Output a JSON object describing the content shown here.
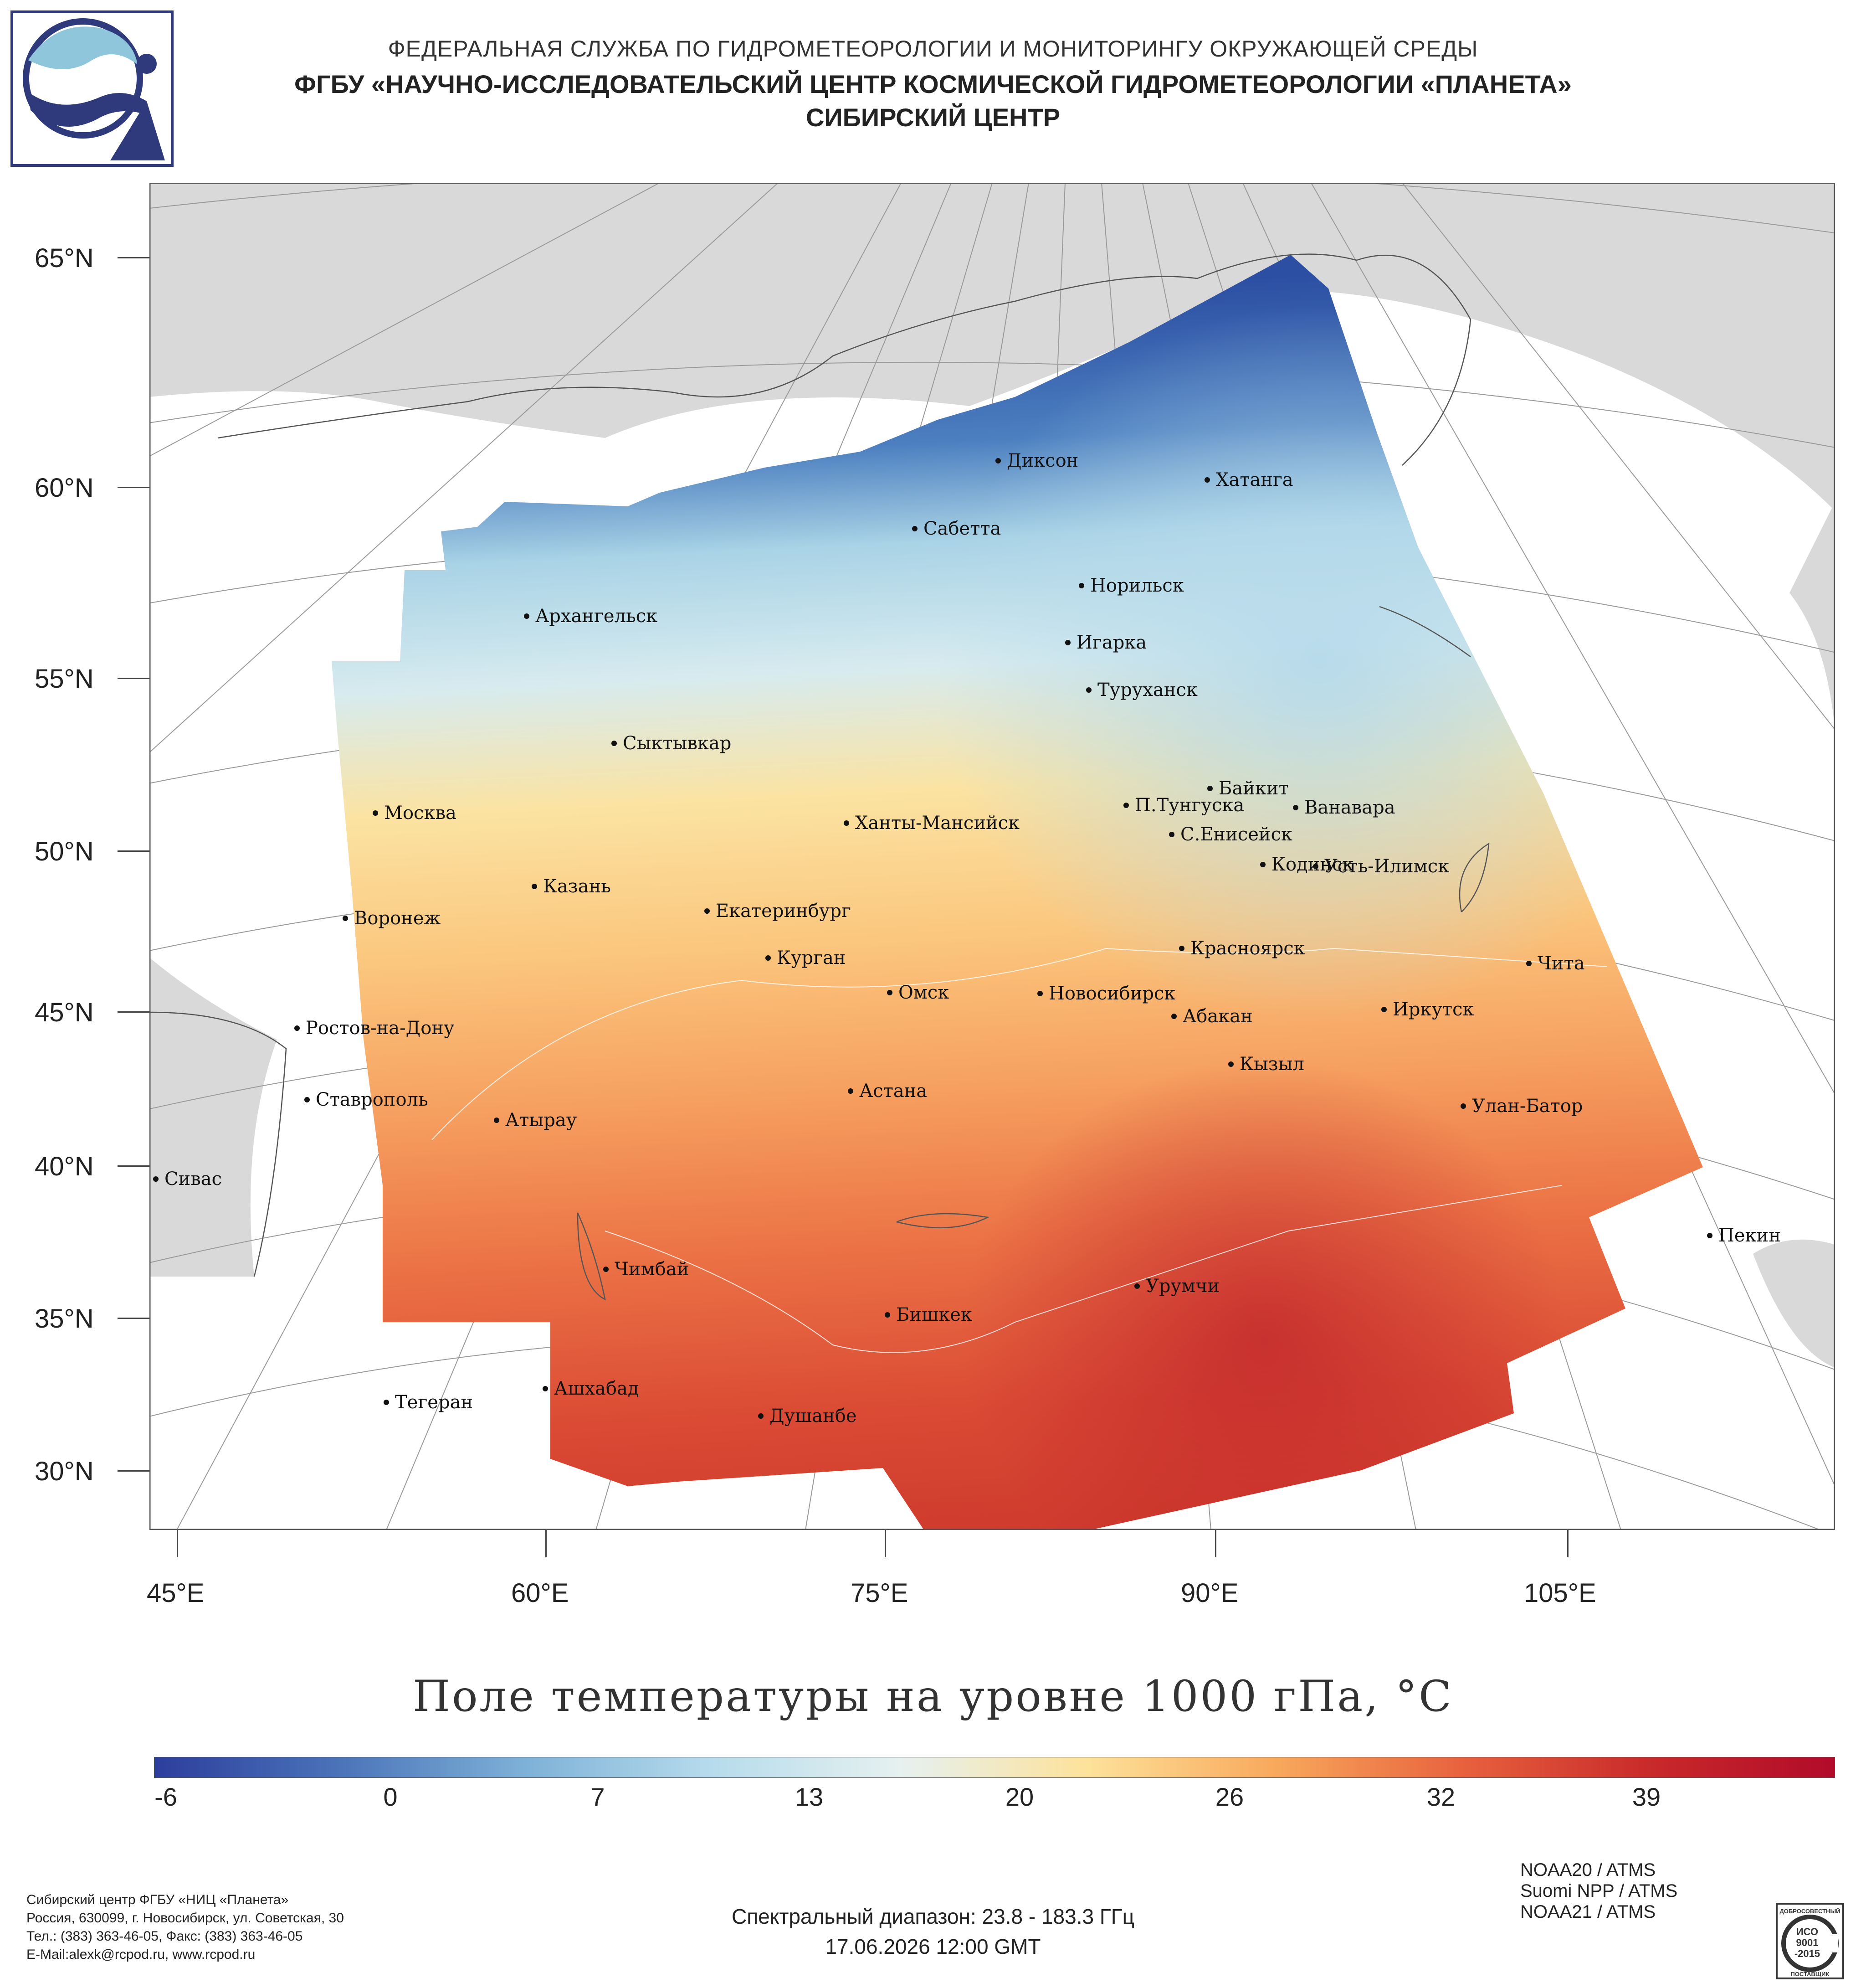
{
  "header": {
    "line1": "ФЕДЕРАЛЬНАЯ СЛУЖБА ПО ГИДРОМЕТЕОРОЛОГИИ И МОНИТОРИНГУ ОКРУЖАЮЩЕЙ СРЕДЫ",
    "line2": "ФГБУ «НАУЧНО-ИССЛЕДОВАТЕЛЬСКИЙ ЦЕНТР КОСМИЧЕСКОЙ ГИДРОМЕТЕОРОЛОГИИ «ПЛАНЕТА»",
    "line3": "СИБИРСКИЙ ЦЕНТР"
  },
  "map": {
    "lat_labels": [
      "65°N",
      "60°N",
      "55°N",
      "50°N",
      "45°N",
      "40°N",
      "35°N",
      "30°N"
    ],
    "lon_labels": [
      "45°E",
      "60°E",
      "75°E",
      "90°E",
      "105°E"
    ],
    "cities": [
      "Диксон",
      "Хатанга",
      "Сабетта",
      "Норильск",
      "Архангельск",
      "Игарка",
      "Туруханск",
      "Сыктывкар",
      "Байкит",
      "П.Тунгуска",
      "Ванавара",
      "Москва",
      "Ханты-Мансийск",
      "С.Енисейск",
      "Кодинск",
      "Усть-Илимск",
      "Казань",
      "Воронеж",
      "Екатеринбург",
      "Красноярск",
      "Курган",
      "Чита",
      "Омск",
      "Новосибирск",
      "Иркутск",
      "Ростов-на-Дону",
      "Абакан",
      "Кызыл",
      "Ставрополь",
      "Астана",
      "Улан-Батор",
      "Атырау",
      "Сивас",
      "Пекин",
      "Чимбай",
      "Урумчи",
      "Бишкек",
      "Ашхабад",
      "Тегеран",
      "Душанбе"
    ],
    "colors": {
      "land": "#d9d9d9",
      "ocean": "#ffffff",
      "border": "#ffffff",
      "graticule": "#9a9a9a"
    }
  },
  "product_title": "Поле температуры на уровне 1000 гПа, °C",
  "colorbar": {
    "ticks": [
      "-6",
      "0",
      "7",
      "13",
      "20",
      "26",
      "32",
      "39"
    ],
    "colors": [
      "#2c3e9c",
      "#4b74b9",
      "#7fb2d8",
      "#b7dcec",
      "#e6f1f0",
      "#fde29a",
      "#f8a95c",
      "#e8623e",
      "#c92a2a",
      "#b10b2a"
    ]
  },
  "footer": {
    "org_lines": [
      "Сибирский центр ФГБУ «НИЦ «Планета»",
      "Россия, 630099, г. Новосибирск, ул. Советская, 30",
      "Тел.: (383) 363-46-05, Факс: (383) 363-46-05",
      "E-Mail:alexk@rcpod.ru, www.rcpod.ru"
    ],
    "spectral_range": "Спектральный диапазон: 23.8 - 183.3 ГГц",
    "datetime": "17.06.2026 12:00 GMT",
    "instruments": [
      "NOAA20 / ATMS",
      "Suomi NPP / ATMS",
      "NOAA21 / ATMS"
    ],
    "iso_text": [
      "ДОБРОСОВЕСТНЫЙ",
      "ИСО",
      "9001",
      "-2015",
      "ПОСТАВЩИК"
    ]
  }
}
